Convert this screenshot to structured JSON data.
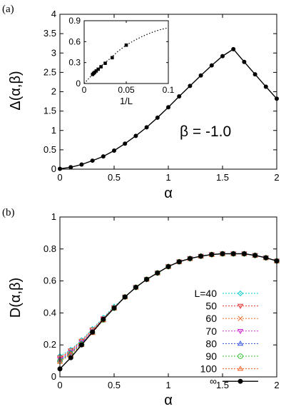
{
  "chart_data": [
    {
      "panel_label": "(a)",
      "type": "line",
      "ylabel": "Δ(α,β)",
      "xlabel": "α",
      "xlim": [
        0,
        2
      ],
      "ylim": [
        0,
        4
      ],
      "xticks": [
        "0",
        "0.5",
        "1",
        "1.5",
        "2"
      ],
      "yticks": [
        "0",
        "0.5",
        "1",
        "1.5",
        "2",
        "2.5",
        "3",
        "3.5",
        "4"
      ],
      "annotation": "β = -1.0",
      "x": [
        0,
        0.1,
        0.2,
        0.3,
        0.4,
        0.5,
        0.6,
        0.7,
        0.8,
        0.9,
        1.0,
        1.1,
        1.2,
        1.3,
        1.4,
        1.5,
        1.6,
        1.7,
        1.8,
        1.9,
        2.0
      ],
      "y": [
        0.01,
        0.05,
        0.12,
        0.22,
        0.33,
        0.48,
        0.66,
        0.86,
        1.08,
        1.33,
        1.6,
        1.88,
        2.15,
        2.42,
        2.68,
        2.92,
        3.1,
        2.77,
        2.45,
        2.13,
        1.82
      ],
      "inset": {
        "xlabel": "1/L",
        "xlim": [
          0,
          0.1
        ],
        "ylim": [
          0,
          0.9
        ],
        "xticks": [
          "0",
          "0.05",
          "0.1"
        ],
        "yticks": [
          "0",
          "0.3",
          "0.6",
          "0.9"
        ],
        "points_x": [
          0.01,
          0.0111,
          0.0125,
          0.0143,
          0.0167,
          0.02,
          0.025,
          0.0333,
          0.05
        ],
        "points_y": [
          0.13,
          0.145,
          0.16,
          0.18,
          0.205,
          0.24,
          0.29,
          0.37,
          0.55
        ],
        "fit_x": [
          0.0,
          0.01,
          0.02,
          0.03,
          0.04,
          0.05,
          0.06,
          0.07,
          0.08,
          0.09,
          0.1
        ],
        "fit_y": [
          0.0,
          0.13,
          0.25,
          0.35,
          0.46,
          0.55,
          0.62,
          0.68,
          0.73,
          0.77,
          0.8
        ]
      }
    },
    {
      "panel_label": "(b)",
      "type": "line",
      "ylabel": "D(α,β)",
      "xlabel": "α",
      "xlim": [
        0,
        2
      ],
      "ylim": [
        0,
        1
      ],
      "xticks": [
        "0",
        "0.5",
        "1",
        "1.5",
        "2"
      ],
      "yticks": [
        "0",
        "0.2",
        "0.4",
        "0.6",
        "0.8",
        "1"
      ],
      "x": [
        0,
        0.1,
        0.2,
        0.3,
        0.4,
        0.5,
        0.6,
        0.7,
        0.8,
        0.9,
        1.0,
        1.1,
        1.2,
        1.3,
        1.4,
        1.5,
        1.6,
        1.7,
        1.8,
        1.9,
        2.0
      ],
      "series": [
        {
          "name": "L=40",
          "color": "#00c8c8",
          "marker": "diamond",
          "values": [
            0.13,
            0.17,
            0.23,
            0.3,
            0.37,
            0.44,
            0.5,
            0.56,
            0.61,
            0.65,
            0.69,
            0.72,
            0.74,
            0.755,
            0.765,
            0.77,
            0.77,
            0.77,
            0.76,
            0.745,
            0.725
          ]
        },
        {
          "name": "50",
          "color": "#e03030",
          "marker": "tri-down",
          "values": [
            0.12,
            0.165,
            0.225,
            0.295,
            0.365,
            0.435,
            0.5,
            0.56,
            0.61,
            0.65,
            0.69,
            0.72,
            0.74,
            0.755,
            0.765,
            0.77,
            0.77,
            0.77,
            0.76,
            0.745,
            0.725
          ]
        },
        {
          "name": "60",
          "color": "#f07030",
          "marker": "x",
          "values": [
            0.115,
            0.16,
            0.22,
            0.29,
            0.36,
            0.43,
            0.5,
            0.56,
            0.61,
            0.65,
            0.69,
            0.72,
            0.74,
            0.755,
            0.765,
            0.77,
            0.77,
            0.77,
            0.76,
            0.745,
            0.725
          ]
        },
        {
          "name": "70",
          "color": "#d020d0",
          "marker": "tri-down",
          "values": [
            0.11,
            0.155,
            0.215,
            0.285,
            0.36,
            0.43,
            0.5,
            0.56,
            0.61,
            0.65,
            0.69,
            0.72,
            0.74,
            0.755,
            0.765,
            0.77,
            0.77,
            0.77,
            0.76,
            0.745,
            0.725
          ]
        },
        {
          "name": "80",
          "color": "#3050e0",
          "marker": "tri-up",
          "values": [
            0.105,
            0.15,
            0.21,
            0.28,
            0.355,
            0.43,
            0.5,
            0.56,
            0.61,
            0.65,
            0.69,
            0.72,
            0.74,
            0.755,
            0.765,
            0.77,
            0.77,
            0.77,
            0.76,
            0.745,
            0.725
          ]
        },
        {
          "name": "90",
          "color": "#30c030",
          "marker": "circle",
          "values": [
            0.1,
            0.145,
            0.205,
            0.28,
            0.355,
            0.43,
            0.5,
            0.56,
            0.61,
            0.65,
            0.69,
            0.72,
            0.74,
            0.755,
            0.765,
            0.77,
            0.77,
            0.77,
            0.76,
            0.745,
            0.725
          ]
        },
        {
          "name": "100",
          "color": "#f06020",
          "marker": "tri-up",
          "values": [
            0.095,
            0.14,
            0.2,
            0.275,
            0.355,
            0.43,
            0.5,
            0.56,
            0.61,
            0.65,
            0.69,
            0.72,
            0.74,
            0.755,
            0.765,
            0.77,
            0.77,
            0.77,
            0.76,
            0.745,
            0.725
          ]
        },
        {
          "name": "∞",
          "color": "#000000",
          "marker": "dot",
          "values": [
            0.05,
            0.12,
            0.2,
            0.28,
            0.36,
            0.43,
            0.5,
            0.56,
            0.61,
            0.65,
            0.69,
            0.72,
            0.74,
            0.755,
            0.765,
            0.77,
            0.77,
            0.77,
            0.76,
            0.745,
            0.725
          ]
        }
      ]
    }
  ]
}
